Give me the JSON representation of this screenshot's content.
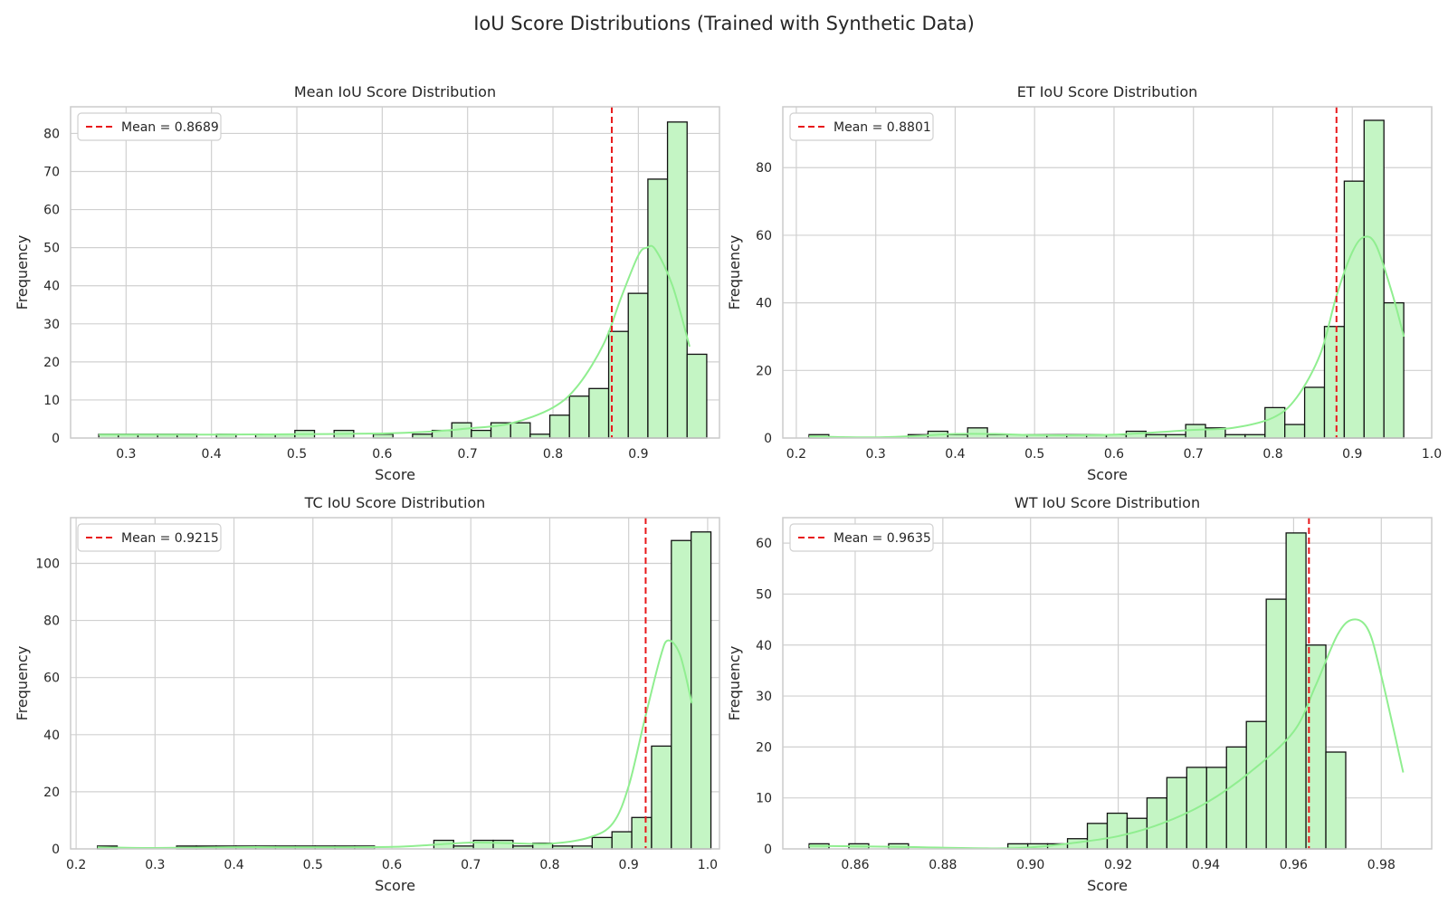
{
  "figure": {
    "title": "IoU Score Distributions (Trained with Synthetic Data)"
  },
  "colors": {
    "bar_fill": "#c4f5c4",
    "bar_edge": "#111111",
    "kde": "#90ee90",
    "mean_line": "#e8191b",
    "grid": "#d0d0d0",
    "frame": "#cccccc"
  },
  "chart_data": [
    {
      "type": "bar",
      "title": "Mean IoU Score Distribution",
      "xlabel": "Score",
      "ylabel": "Frequency",
      "xlim": [
        0.235,
        0.995
      ],
      "ylim": [
        0,
        87
      ],
      "xticks": [
        0.3,
        0.4,
        0.5,
        0.6,
        0.7,
        0.8,
        0.9
      ],
      "xtick_labels": [
        "0.3",
        "0.4",
        "0.5",
        "0.6",
        "0.7",
        "0.8",
        "0.9"
      ],
      "yticks": [
        0,
        10,
        20,
        30,
        40,
        50,
        60,
        70,
        80
      ],
      "bin_start": 0.268,
      "bin_width": 0.02297,
      "values": [
        1,
        1,
        1,
        1,
        1,
        0,
        1,
        0,
        1,
        1,
        2,
        0,
        2,
        0,
        1,
        0,
        1,
        2,
        4,
        2,
        4,
        4,
        1,
        6,
        11,
        13,
        28,
        38,
        68,
        83,
        22
      ],
      "kde": [
        [
          0.268,
          0.9
        ],
        [
          0.4,
          0.9
        ],
        [
          0.5,
          1.0
        ],
        [
          0.6,
          1.2
        ],
        [
          0.65,
          1.6
        ],
        [
          0.7,
          2.5
        ],
        [
          0.75,
          3.8
        ],
        [
          0.8,
          8
        ],
        [
          0.83,
          14
        ],
        [
          0.86,
          25
        ],
        [
          0.88,
          37
        ],
        [
          0.9,
          48
        ],
        [
          0.91,
          50
        ],
        [
          0.92,
          49.5
        ],
        [
          0.94,
          40
        ],
        [
          0.96,
          24
        ]
      ],
      "mean": 0.8689,
      "legend": {
        "label": "Mean = 0.8689",
        "position": "upper-left"
      }
    },
    {
      "type": "bar",
      "title": "ET IoU Score Distribution",
      "xlabel": "Score",
      "ylabel": "Frequency",
      "xlim": [
        0.183,
        1.0
      ],
      "ylim": [
        0,
        98
      ],
      "xticks": [
        0.2,
        0.3,
        0.4,
        0.5,
        0.6,
        0.7,
        0.8,
        0.9,
        1.0
      ],
      "xtick_labels": [
        "0.2",
        "0.3",
        "0.4",
        "0.5",
        "0.6",
        "0.7",
        "0.8",
        "0.9",
        "1.0"
      ],
      "yticks": [
        0,
        20,
        40,
        60,
        80
      ],
      "bin_start": 0.216,
      "bin_width": 0.02496,
      "values": [
        1,
        0,
        0,
        0,
        0,
        1,
        2,
        1,
        3,
        1,
        1,
        1,
        1,
        1,
        1,
        1,
        2,
        1,
        1,
        4,
        3,
        1,
        1,
        9,
        4,
        15,
        33,
        76,
        94,
        40
      ],
      "kde": [
        [
          0.216,
          0.5
        ],
        [
          0.25,
          0.3
        ],
        [
          0.3,
          0.2
        ],
        [
          0.35,
          0.6
        ],
        [
          0.4,
          1.2
        ],
        [
          0.45,
          1.2
        ],
        [
          0.5,
          0.9
        ],
        [
          0.6,
          1.0
        ],
        [
          0.7,
          2.4
        ],
        [
          0.75,
          3
        ],
        [
          0.8,
          6
        ],
        [
          0.83,
          12
        ],
        [
          0.86,
          25
        ],
        [
          0.88,
          42
        ],
        [
          0.9,
          55
        ],
        [
          0.915,
          59.5
        ],
        [
          0.93,
          57
        ],
        [
          0.95,
          43
        ],
        [
          0.965,
          30
        ]
      ],
      "mean": 0.8801,
      "legend": {
        "label": "Mean = 0.8801",
        "position": "upper-left"
      }
    },
    {
      "type": "bar",
      "title": "TC IoU Score Distribution",
      "xlabel": "Score",
      "ylabel": "Frequency",
      "xlim": [
        0.193,
        1.015
      ],
      "ylim": [
        0,
        116
      ],
      "xticks": [
        0.2,
        0.3,
        0.4,
        0.5,
        0.6,
        0.7,
        0.8,
        0.9,
        1.0
      ],
      "xtick_labels": [
        "0.2",
        "0.3",
        "0.4",
        "0.5",
        "0.6",
        "0.7",
        "0.8",
        "0.9",
        "1.0"
      ],
      "yticks": [
        0,
        20,
        40,
        60,
        80,
        100
      ],
      "bin_start": 0.227,
      "bin_width": 0.02507,
      "values": [
        1,
        0,
        0,
        0,
        1,
        1,
        1,
        1,
        1,
        1,
        1,
        1,
        1,
        1,
        0,
        0,
        0,
        3,
        1,
        3,
        3,
        1,
        2,
        1,
        1,
        4,
        6,
        11,
        36,
        108,
        111
      ],
      "kde": [
        [
          0.227,
          0.6
        ],
        [
          0.3,
          0.3
        ],
        [
          0.4,
          0.6
        ],
        [
          0.5,
          0.6
        ],
        [
          0.6,
          0.7
        ],
        [
          0.65,
          1.4
        ],
        [
          0.7,
          2.2
        ],
        [
          0.75,
          2
        ],
        [
          0.8,
          1.8
        ],
        [
          0.85,
          4
        ],
        [
          0.88,
          9
        ],
        [
          0.9,
          22
        ],
        [
          0.92,
          45
        ],
        [
          0.94,
          67
        ],
        [
          0.95,
          73
        ],
        [
          0.965,
          68
        ],
        [
          0.98,
          51
        ]
      ],
      "mean": 0.9215,
      "legend": {
        "label": "Mean = 0.9215",
        "position": "upper-left"
      }
    },
    {
      "type": "bar",
      "title": "WT IoU Score Distribution",
      "xlabel": "Score",
      "ylabel": "Frequency",
      "xlim": [
        0.8435,
        0.9915
      ],
      "ylim": [
        0,
        65
      ],
      "xticks": [
        0.86,
        0.88,
        0.9,
        0.92,
        0.94,
        0.96,
        0.98
      ],
      "xtick_labels": [
        "0.86",
        "0.88",
        "0.90",
        "0.92",
        "0.94",
        "0.96",
        "0.98"
      ],
      "yticks": [
        0,
        10,
        20,
        30,
        40,
        50,
        60
      ],
      "bin_start": 0.8495,
      "bin_width": 0.004533,
      "values": [
        1,
        0,
        1,
        0,
        1,
        0,
        0,
        0,
        0,
        0,
        1,
        1,
        1,
        2,
        5,
        7,
        6,
        10,
        14,
        16,
        16,
        20,
        25,
        49,
        62,
        40,
        19
      ],
      "kde": [
        [
          0.8495,
          0.6
        ],
        [
          0.87,
          0.4
        ],
        [
          0.89,
          0.1
        ],
        [
          0.9,
          0.3
        ],
        [
          0.91,
          1.2
        ],
        [
          0.92,
          2.5
        ],
        [
          0.93,
          5
        ],
        [
          0.94,
          9
        ],
        [
          0.95,
          15
        ],
        [
          0.96,
          23
        ],
        [
          0.965,
          32
        ],
        [
          0.97,
          42
        ],
        [
          0.9735,
          45
        ],
        [
          0.977,
          43
        ],
        [
          0.98,
          34
        ],
        [
          0.985,
          15
        ]
      ],
      "mean": 0.9635,
      "legend": {
        "label": "Mean = 0.9635",
        "position": "upper-left"
      }
    }
  ]
}
